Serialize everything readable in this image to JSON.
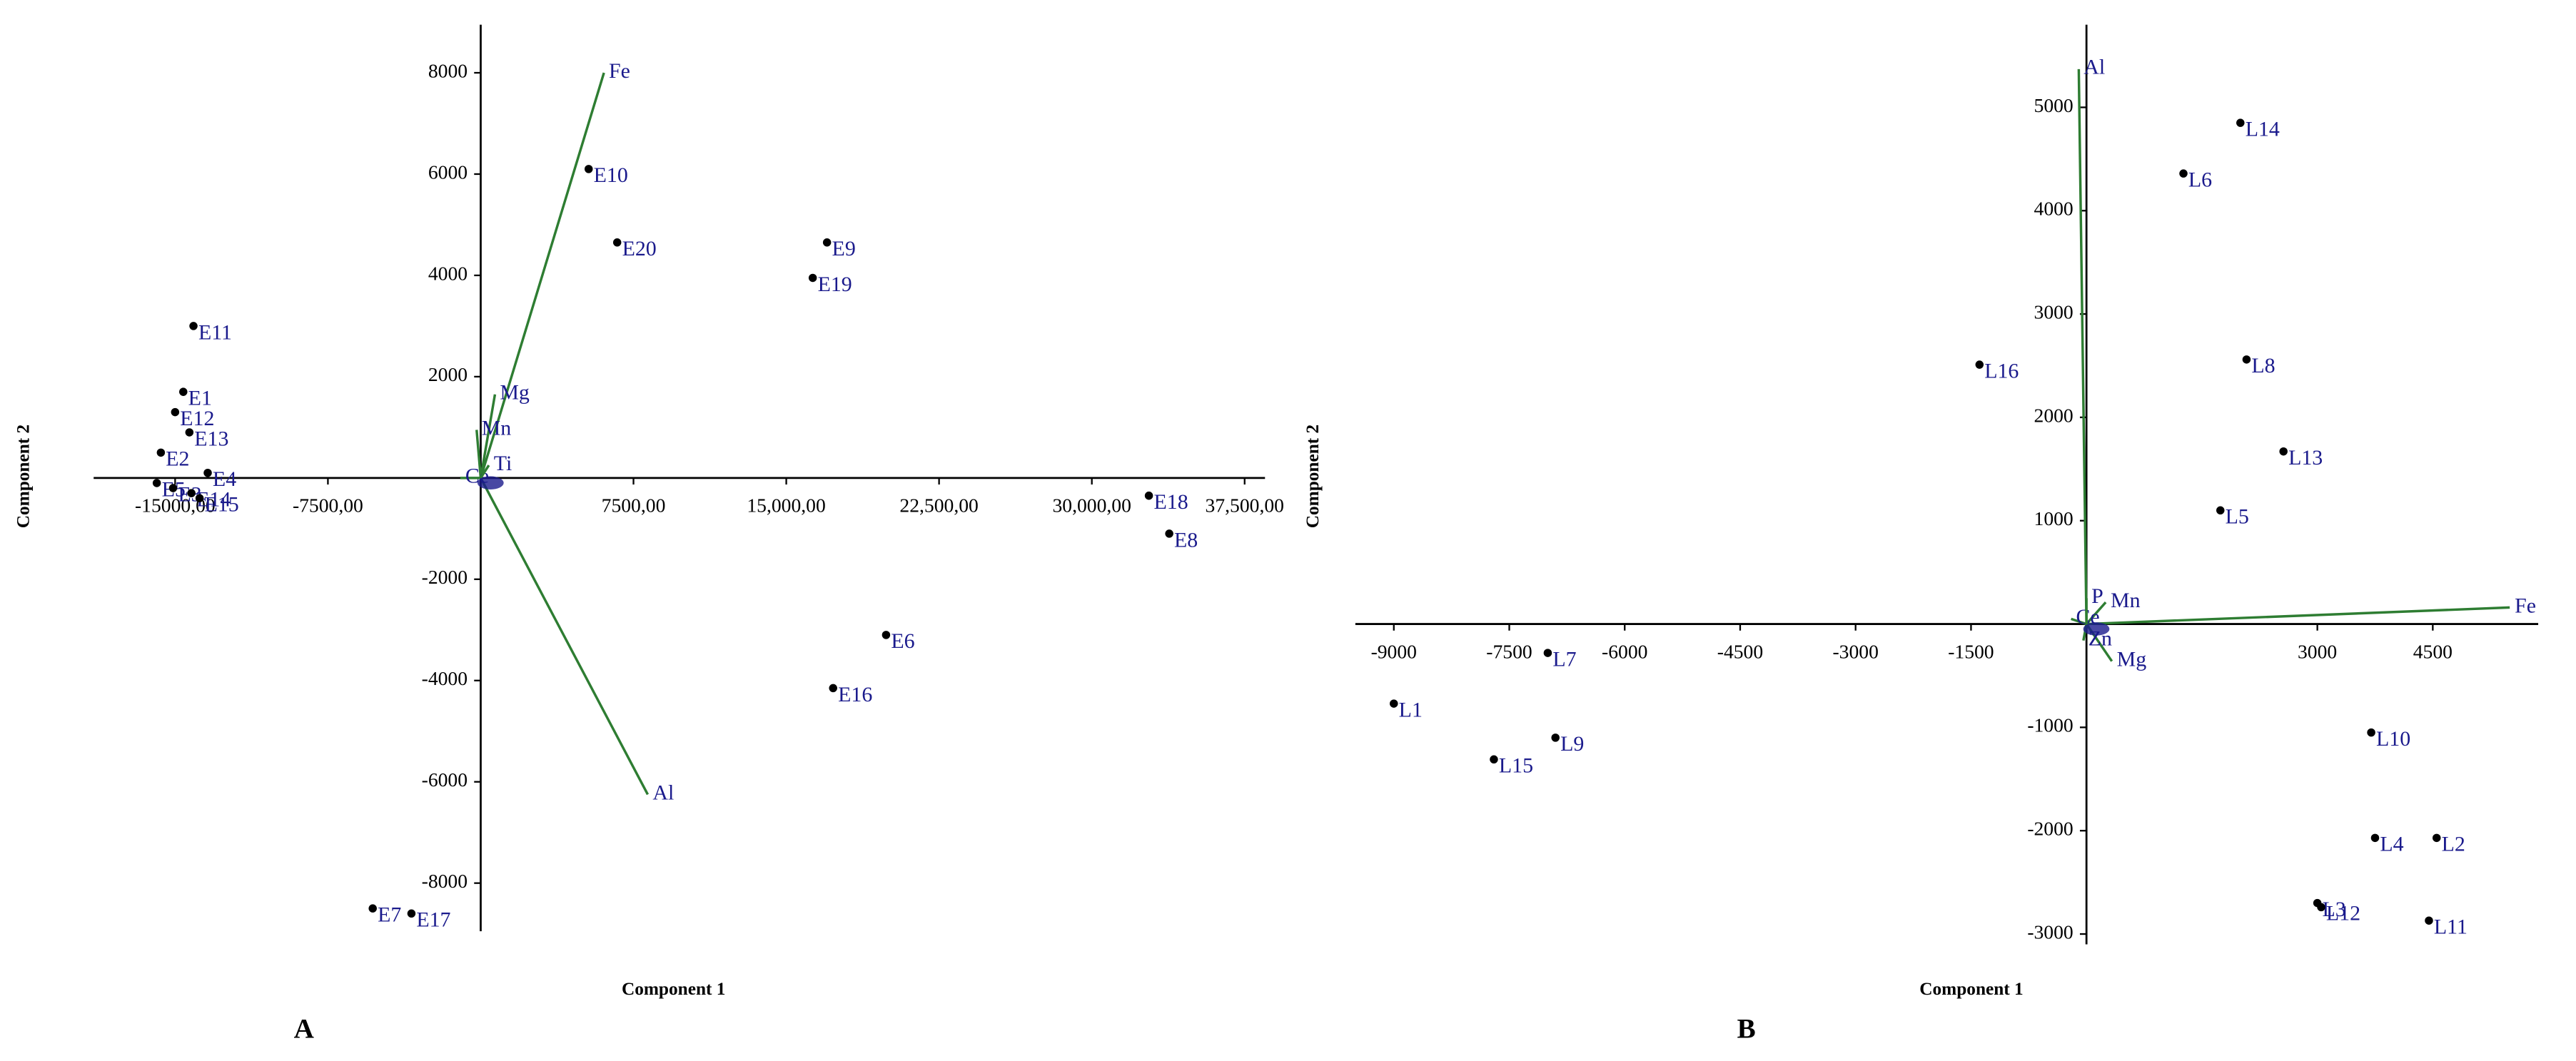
{
  "chart_data": [
    {
      "type": "biplot",
      "panel": "A",
      "x_label": "Component 1",
      "y_label": "Component 2",
      "xlim": [
        -19000,
        38500
      ],
      "ylim": [
        -8950,
        8950
      ],
      "xticks": [
        {
          "value": -15000,
          "label": "-15000,00"
        },
        {
          "value": -7500,
          "label": "-7500,00"
        },
        {
          "value": 7500,
          "label": "7500,00"
        },
        {
          "value": 15000,
          "label": "15,000,00"
        },
        {
          "value": 22500,
          "label": "22,500,00"
        },
        {
          "value": 30000,
          "label": "30,000,00"
        },
        {
          "value": 37500,
          "label": "37,500,00"
        }
      ],
      "yticks": [
        -8000,
        -6000,
        -4000,
        -2000,
        2000,
        4000,
        6000,
        8000
      ],
      "axis_color": "#000000",
      "label_color": "#1a1a8c",
      "points": {
        "color": "#000000",
        "labels": [
          "E10",
          "E20",
          "E9",
          "E19",
          "E11",
          "E1",
          "E12",
          "E13",
          "E2",
          "E4",
          "E5",
          "E3",
          "E14",
          "E15",
          "E18",
          "E8",
          "E6",
          "E16",
          "E7",
          "E17"
        ],
        "x": [
          5300,
          6700,
          17000,
          16300,
          -14100,
          -14600,
          -15000,
          -14300,
          -15700,
          -13400,
          -15900,
          -15100,
          -14200,
          -13800,
          32800,
          33800,
          19900,
          17300,
          -5300,
          -3400
        ],
        "y": [
          6100,
          4650,
          4650,
          3950,
          3000,
          1700,
          1300,
          900,
          500,
          100,
          -100,
          -200,
          -300,
          -400,
          -350,
          -1100,
          -3100,
          -4150,
          -8500,
          -8600
        ]
      },
      "vectors": {
        "color": "#2e7d32",
        "labels": [
          "Fe",
          "Al",
          "Mg",
          "Mn",
          "Ce",
          "Ti"
        ],
        "x": [
          6050,
          8200,
          700,
          -200,
          -1000,
          400
        ],
        "y": [
          8000,
          -6250,
          1650,
          950,
          0,
          250
        ]
      }
    },
    {
      "type": "biplot",
      "panel": "B",
      "x_label": "Component 1",
      "y_label": "Component 2",
      "xlim": [
        -9500,
        5870
      ],
      "ylim": [
        -3100,
        5800
      ],
      "xticks": [
        -9000,
        -7500,
        -6000,
        -4500,
        -3000,
        -1500,
        3000,
        4500
      ],
      "yticks": [
        -3000,
        -2000,
        -1000,
        1000,
        2000,
        3000,
        4000,
        5000
      ],
      "axis_color": "#000000",
      "label_color": "#1a1a8c",
      "points": {
        "color": "#000000",
        "labels": [
          "L14",
          "L6",
          "L16",
          "L8",
          "L13",
          "L5",
          "L7",
          "L1",
          "L15",
          "L9",
          "L10",
          "L4",
          "L2",
          "L3",
          "L12",
          "L11"
        ],
        "x": [
          2000,
          1260,
          -1390,
          2080,
          2560,
          1740,
          -7000,
          -9000,
          -7700,
          -6900,
          3700,
          3750,
          4550,
          3000,
          3050,
          4450
        ],
        "y": [
          4850,
          4360,
          2510,
          2560,
          1670,
          1100,
          -280,
          -770,
          -1310,
          -1100,
          -1050,
          -2070,
          -2070,
          -2700,
          -2740,
          -2870
        ]
      },
      "vectors": {
        "color": "#2e7d32",
        "labels": [
          "Al",
          "Fe",
          "Mn",
          "Mg",
          "Ce",
          "Zn",
          "P"
        ],
        "x": [
          -100,
          5500,
          250,
          330,
          -200,
          -40,
          0
        ],
        "y": [
          5370,
          160,
          210,
          -360,
          50,
          -160,
          250
        ]
      }
    }
  ]
}
